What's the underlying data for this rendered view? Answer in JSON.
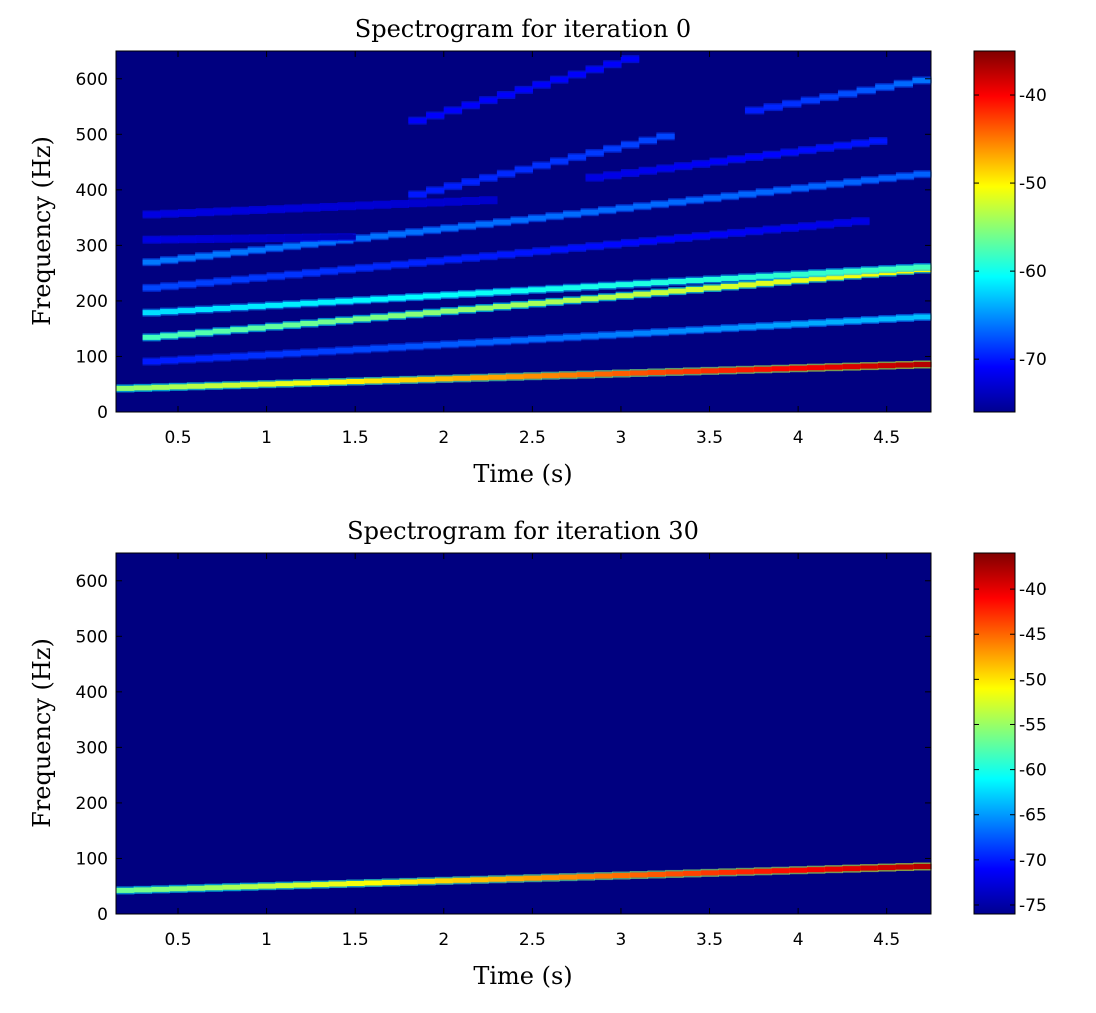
{
  "chart_data": [
    {
      "type": "heatmap",
      "title": "Spectrogram for iteration 0",
      "xlabel": "Time (s)",
      "ylabel": "Frequency (Hz)",
      "xlim": [
        0.15,
        4.75
      ],
      "ylim": [
        0,
        650
      ],
      "xticks": [
        0.5,
        1,
        1.5,
        2,
        2.5,
        3,
        3.5,
        4,
        4.5
      ],
      "xtick_labels": [
        "0.5",
        "1",
        "1.5",
        "2",
        "2.5",
        "3",
        "3.5",
        "4",
        "4.5"
      ],
      "yticks": [
        0,
        100,
        200,
        300,
        400,
        500,
        600
      ],
      "ytick_labels": [
        "0",
        "100",
        "200",
        "300",
        "400",
        "500",
        "600"
      ],
      "colorbar": {
        "range": [
          -76,
          -35
        ],
        "ticks": [
          -40,
          -50,
          -60,
          -70
        ],
        "tick_labels": [
          "-40",
          "-50",
          "-60",
          "-70"
        ],
        "colormap": "jet"
      },
      "background_level": -76,
      "harmonic_tracks": [
        {
          "t": [
            0.15,
            4.75
          ],
          "f": [
            42,
            86
          ],
          "level_start": -55,
          "level_end": -37
        },
        {
          "t": [
            0.3,
            4.75
          ],
          "f": [
            90,
            172
          ],
          "level_start": -70,
          "level_end": -63
        },
        {
          "t": [
            0.3,
            4.75
          ],
          "f": [
            133,
            258
          ],
          "level_start": -58,
          "level_end": -50
        },
        {
          "t": [
            0.3,
            4.75
          ],
          "f": [
            178,
            262
          ],
          "level_start": -62,
          "level_end": -58
        },
        {
          "t": [
            0.3,
            4.4
          ],
          "f": [
            222,
            345
          ],
          "level_start": -68,
          "level_end": -72
        },
        {
          "t": [
            0.3,
            4.75
          ],
          "f": [
            268,
            430
          ],
          "level_start": -66,
          "level_end": -67
        },
        {
          "t": [
            0.3,
            1.5
          ],
          "f": [
            310,
            315
          ],
          "level_start": -72,
          "level_end": -74
        },
        {
          "t": [
            0.3,
            2.3
          ],
          "f": [
            355,
            382
          ],
          "level_start": -72,
          "level_end": -73
        },
        {
          "t": [
            1.8,
            3.3
          ],
          "f": [
            388,
            500
          ],
          "level_start": -70,
          "level_end": -68
        },
        {
          "t": [
            2.8,
            4.5
          ],
          "f": [
            420,
            490
          ],
          "level_start": -72,
          "level_end": -70
        },
        {
          "t": [
            1.8,
            3.1
          ],
          "f": [
            520,
            640
          ],
          "level_start": -71,
          "level_end": -71
        },
        {
          "t": [
            3.7,
            4.75
          ],
          "f": [
            540,
            600
          ],
          "level_start": -70,
          "level_end": -66
        }
      ]
    },
    {
      "type": "heatmap",
      "title": "Spectrogram for iteration 30",
      "xlabel": "Time (s)",
      "ylabel": "Frequency (Hz)",
      "xlim": [
        0.15,
        4.75
      ],
      "ylim": [
        0,
        650
      ],
      "xticks": [
        0.5,
        1,
        1.5,
        2,
        2.5,
        3,
        3.5,
        4,
        4.5
      ],
      "xtick_labels": [
        "0.5",
        "1",
        "1.5",
        "2",
        "2.5",
        "3",
        "3.5",
        "4",
        "4.5"
      ],
      "yticks": [
        0,
        100,
        200,
        300,
        400,
        500,
        600
      ],
      "ytick_labels": [
        "0",
        "100",
        "200",
        "300",
        "400",
        "500",
        "600"
      ],
      "colorbar": {
        "range": [
          -76,
          -36
        ],
        "ticks": [
          -40,
          -45,
          -50,
          -55,
          -60,
          -65,
          -70,
          -75
        ],
        "tick_labels": [
          "-40",
          "-45",
          "-50",
          "-55",
          "-60",
          "-65",
          "-70",
          "-75"
        ],
        "colormap": "jet"
      },
      "background_level": -76,
      "harmonic_tracks": [
        {
          "t": [
            0.15,
            4.75
          ],
          "f": [
            42,
            86
          ],
          "level_start": -57,
          "level_end": -38
        }
      ]
    }
  ]
}
